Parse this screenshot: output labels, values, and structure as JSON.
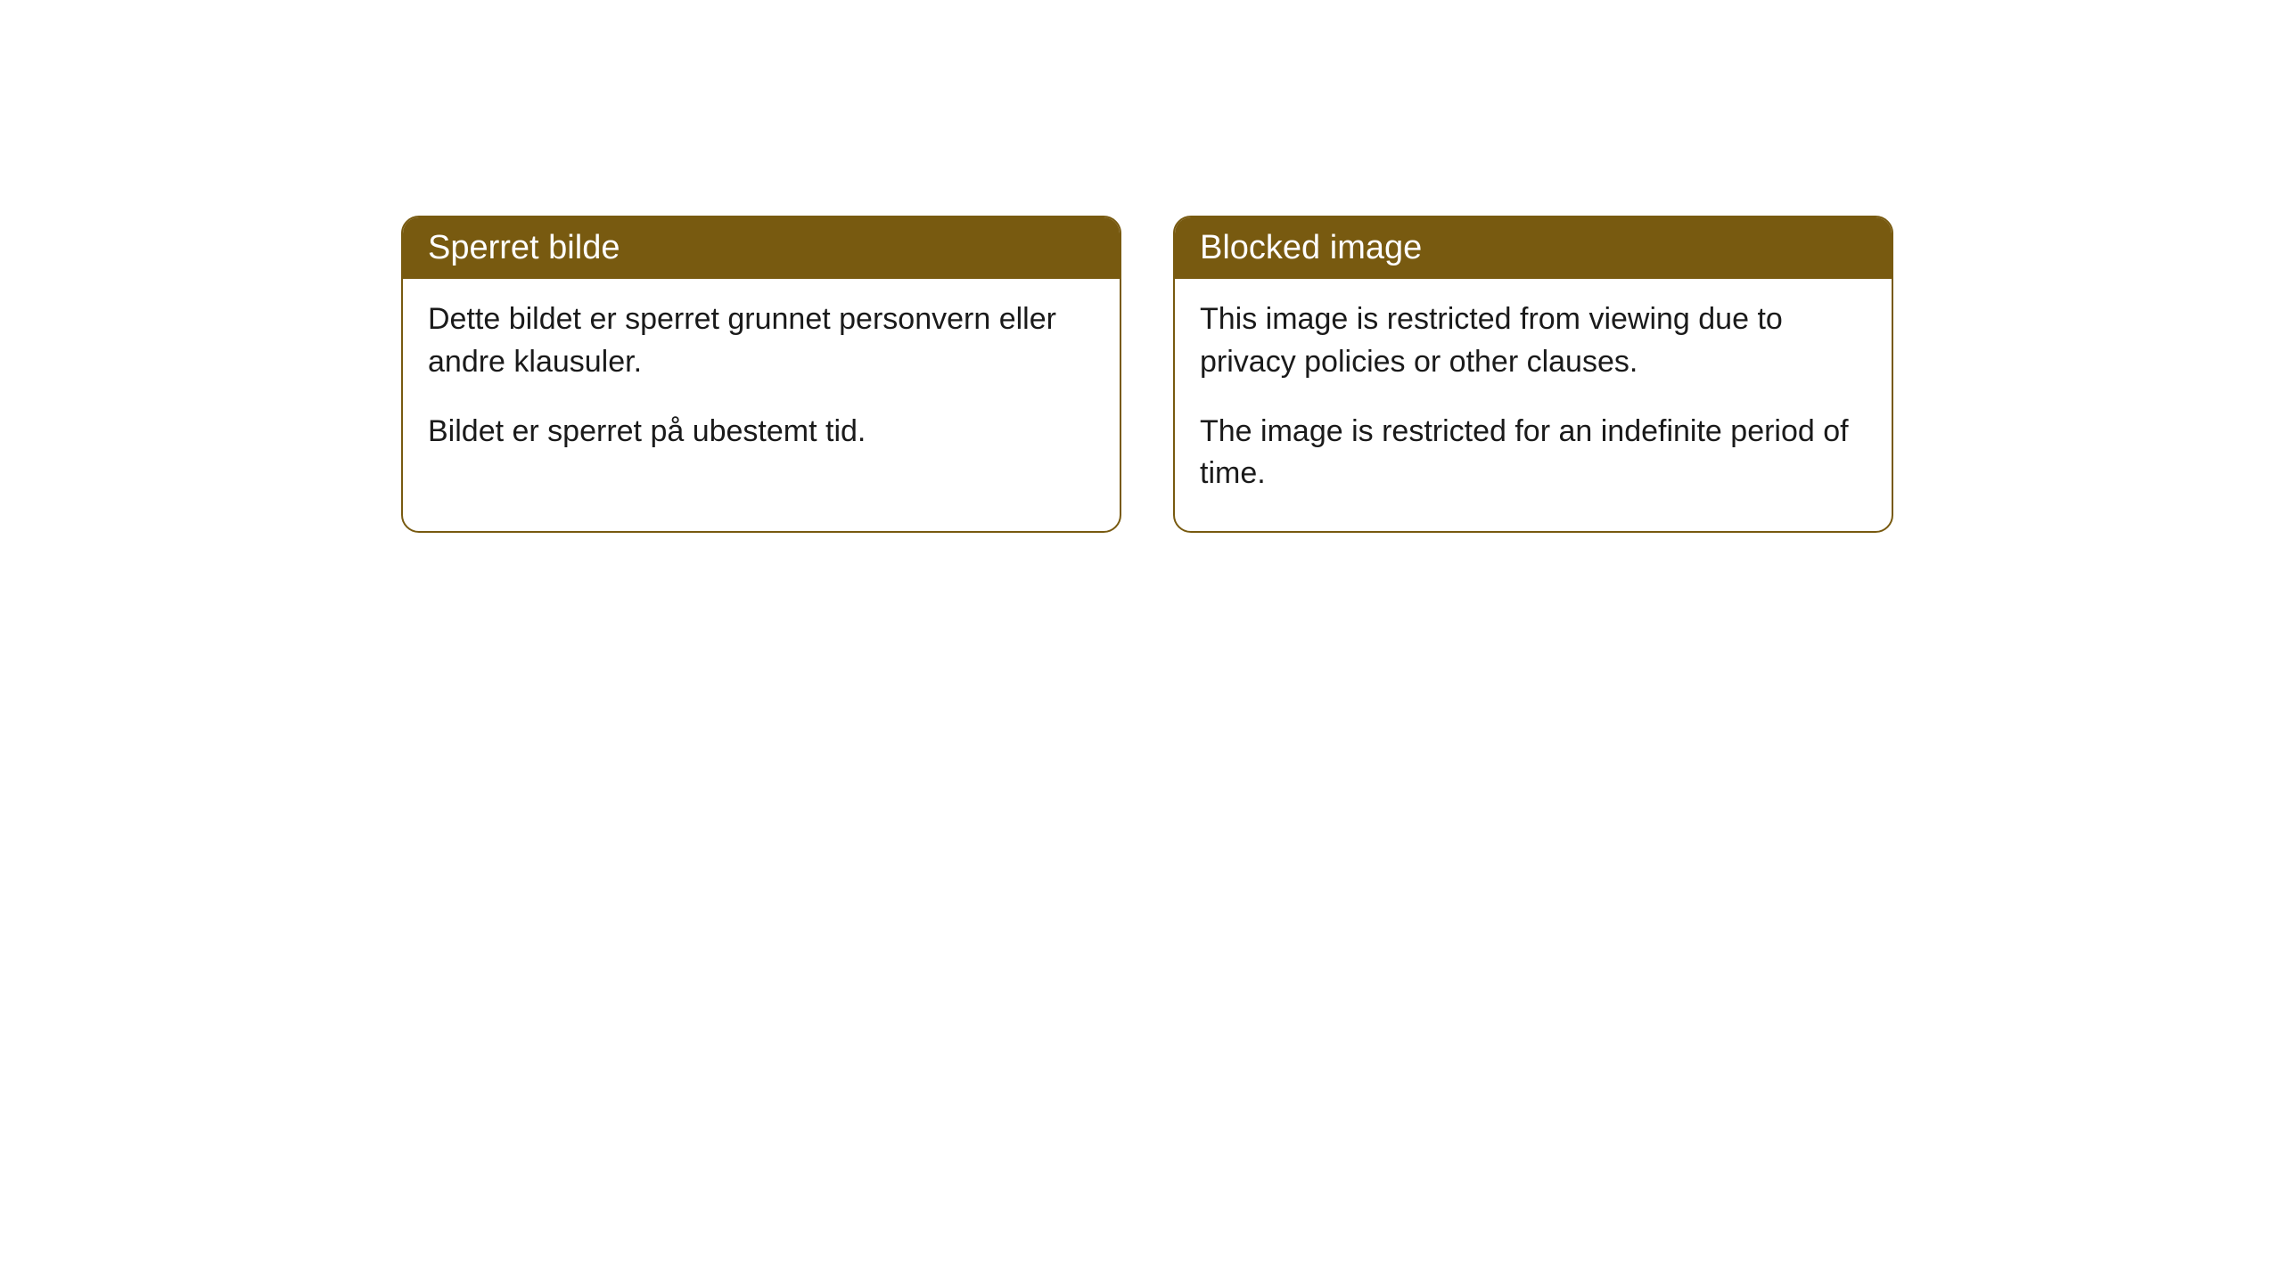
{
  "cards": [
    {
      "title": "Sperret bilde",
      "paragraph1": "Dette bildet er sperret grunnet personvern eller andre klausuler.",
      "paragraph2": "Bildet er sperret på ubestemt tid."
    },
    {
      "title": "Blocked image",
      "paragraph1": "This image is restricted from viewing due to privacy policies or other clauses.",
      "paragraph2": "The image is restricted for an indefinite period of time."
    }
  ],
  "styling": {
    "header_bg_color": "#785a10",
    "header_text_color": "#ffffff",
    "border_color": "#785a10",
    "body_bg_color": "#ffffff",
    "body_text_color": "#1a1a1a",
    "border_radius": 20,
    "title_fontsize": 38,
    "body_fontsize": 34
  }
}
